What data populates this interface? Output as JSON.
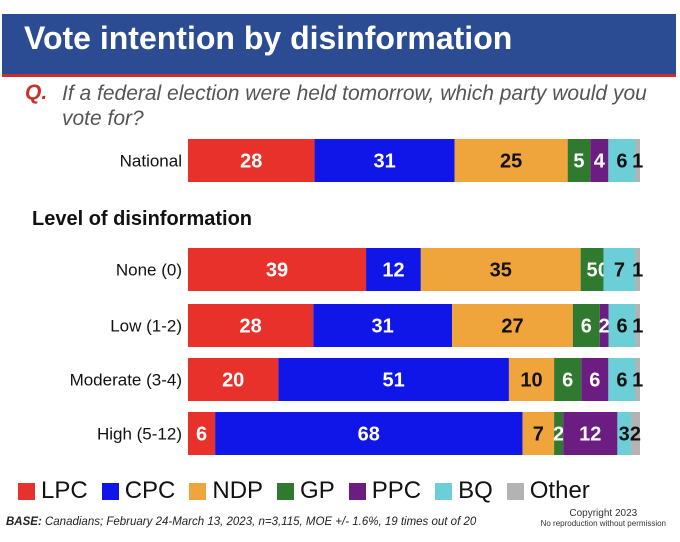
{
  "header": {
    "title": "Vote intention by disinformation",
    "question_label": "Q.",
    "question_text": "If a federal election were held tomorrow, which party would you vote for?"
  },
  "section_label": "Level of disinformation",
  "colors": {
    "header_bg": "#2b4c93",
    "accent_red": "#c9302c",
    "LPC": "#e8312a",
    "CPC": "#1016e8",
    "NDP": "#f0a43c",
    "GP": "#2f7a2f",
    "PPC": "#6b1d82",
    "BQ": "#6ccfd8",
    "Other": "#b3b3b3"
  },
  "chart_data": {
    "type": "bar",
    "orientation": "horizontal-stacked",
    "categories": [
      "National",
      "None (0)",
      "Low (1-2)",
      "Moderate (3-4)",
      "High (5-12)"
    ],
    "series": [
      {
        "name": "LPC",
        "values": [
          28,
          39,
          28,
          20,
          6
        ]
      },
      {
        "name": "CPC",
        "values": [
          31,
          12,
          31,
          51,
          68
        ]
      },
      {
        "name": "NDP",
        "values": [
          25,
          35,
          27,
          10,
          7
        ]
      },
      {
        "name": "GP",
        "values": [
          5,
          5,
          6,
          6,
          2
        ]
      },
      {
        "name": "PPC",
        "values": [
          4,
          0,
          2,
          6,
          12
        ]
      },
      {
        "name": "BQ",
        "values": [
          6,
          7,
          6,
          6,
          3
        ]
      },
      {
        "name": "Other",
        "values": [
          1,
          1,
          1,
          1,
          2
        ]
      }
    ],
    "legend": {
      "placement": "bottom"
    }
  },
  "legend": [
    {
      "name": "LPC"
    },
    {
      "name": "CPC"
    },
    {
      "name": "NDP"
    },
    {
      "name": "GP"
    },
    {
      "name": "PPC"
    },
    {
      "name": "BQ"
    },
    {
      "name": "Other"
    }
  ],
  "footer": {
    "base_label": "BASE:",
    "base_text": "Canadians; February 24-March 13, 2023, n=3,115,  MOE +/- 1.6%, 19 times out of 20",
    "copyright_line1": "Copyright 2023",
    "copyright_line2": "No reproduction without permission"
  }
}
